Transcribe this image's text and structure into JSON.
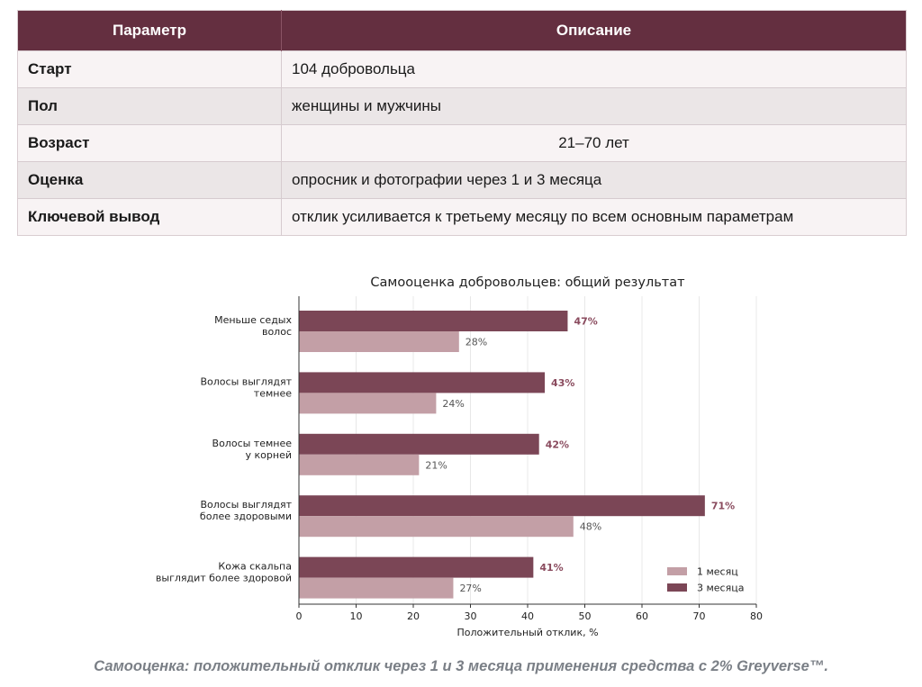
{
  "table": {
    "headers": [
      "Параметр",
      "Описание"
    ],
    "rows": [
      {
        "param": "Старт",
        "desc": "104 добровольца"
      },
      {
        "param": "Пол",
        "desc": "женщины и мужчины"
      },
      {
        "param": "Возраст",
        "desc": "21–70 лет"
      },
      {
        "param": "Оценка",
        "desc": "опросник и фотографии через 1 и 3 месяца"
      },
      {
        "param": "Ключевой вывод",
        "desc": "отклик усиливается к третьему месяцу по всем основным параметрам"
      }
    ]
  },
  "chart_data": {
    "type": "bar",
    "orientation": "horizontal",
    "title": "Самооценка добровольцев: общий результат",
    "xlabel": "Положительный отклик, %",
    "ylabel": "",
    "xlim": [
      0,
      80
    ],
    "xticks": [
      "0",
      "10",
      "20",
      "30",
      "40",
      "50",
      "60",
      "70",
      "80"
    ],
    "categories": [
      [
        "Меньше седых",
        "волос"
      ],
      [
        "Волосы выглядят",
        "темнее"
      ],
      [
        "Волосы темнее",
        "у корней"
      ],
      [
        "Волосы выглядят",
        "более здоровыми"
      ],
      [
        "Кожа скальпа",
        "выглядит более здоровой"
      ]
    ],
    "series": [
      {
        "name": "3 месяца",
        "values": [
          47,
          43,
          42,
          71,
          41
        ],
        "color": "#7b4656"
      },
      {
        "name": "1 месяц",
        "values": [
          28,
          24,
          21,
          48,
          27
        ],
        "color": "#c39fa6"
      }
    ],
    "legend": {
      "position": "bottom-right",
      "order": [
        "1 месяц",
        "3 месяца"
      ]
    },
    "grid": "vertical"
  },
  "caption": "Самооценка: положительный отклик через 1 и 3 месяца применения средства с 2% Greyverse™."
}
